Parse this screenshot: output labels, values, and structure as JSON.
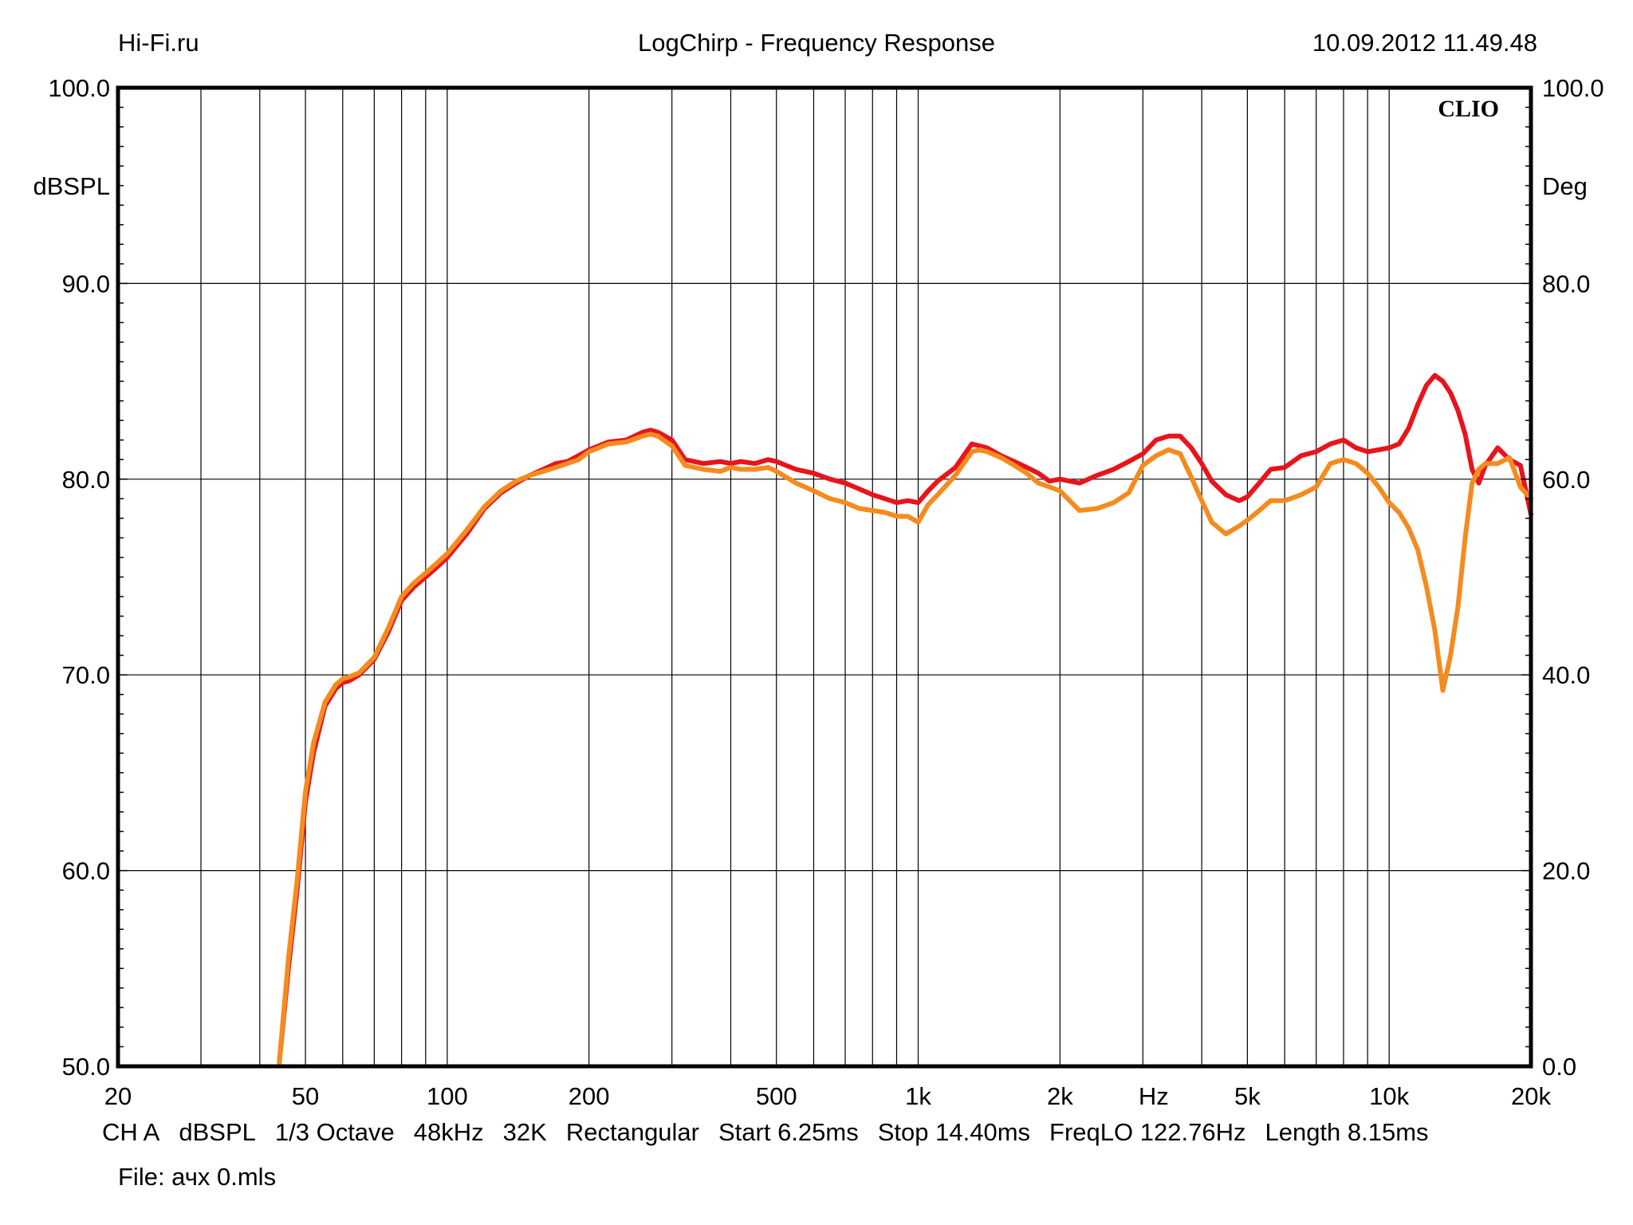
{
  "header": {
    "left": "Hi-Fi.ru",
    "title": "LogChirp - Frequency Response",
    "timestamp": "10.09.2012 11.49.48"
  },
  "footer": {
    "items": [
      "CH A",
      "dBSPL",
      "1/3 Octave",
      "48kHz",
      "32K",
      "Rectangular",
      "Start 6.25ms",
      "Stop 14.40ms",
      "FreqLO 122.76Hz",
      "Length 8.15ms"
    ],
    "file": "File: ачх 0.mls"
  },
  "chart_data": {
    "type": "line",
    "title": "LogChirp - Frequency Response",
    "watermark": "CLIO",
    "xscale": "log",
    "xlim": [
      20,
      20000
    ],
    "x_ticks": [
      {
        "value": 20,
        "label": "20"
      },
      {
        "value": 50,
        "label": "50"
      },
      {
        "value": 100,
        "label": "100"
      },
      {
        "value": 200,
        "label": "200"
      },
      {
        "value": 500,
        "label": "500"
      },
      {
        "value": 1000,
        "label": "1k"
      },
      {
        "value": 2000,
        "label": "2k"
      },
      {
        "value": 5000,
        "label": "5k"
      },
      {
        "value": 10000,
        "label": "10k"
      },
      {
        "value": 20000,
        "label": "20k"
      }
    ],
    "xlabel": "Hz",
    "ylabel_left": "dBSPL",
    "ylim_left": [
      50,
      100
    ],
    "y_ticks_left": [
      "50.0",
      "60.0",
      "70.0",
      "80.0",
      "90.0",
      "100.0"
    ],
    "ylabel_right": "Deg",
    "ylim_right": [
      0,
      100
    ],
    "y_ticks_right": [
      "0.0",
      "20.0",
      "40.0",
      "60.0",
      "80.0",
      "100.0"
    ],
    "grid": true,
    "series": [
      {
        "color": "#e8141c",
        "x": [
          44,
          46,
          48,
          50,
          52,
          55,
          58,
          60,
          62,
          65,
          70,
          75,
          80,
          85,
          90,
          95,
          100,
          110,
          120,
          130,
          140,
          150,
          160,
          170,
          180,
          190,
          200,
          220,
          240,
          260,
          270,
          280,
          300,
          320,
          350,
          380,
          400,
          420,
          450,
          480,
          500,
          550,
          600,
          650,
          700,
          750,
          800,
          850,
          900,
          950,
          1000,
          1050,
          1100,
          1200,
          1300,
          1350,
          1400,
          1500,
          1600,
          1700,
          1800,
          1900,
          2000,
          2200,
          2400,
          2600,
          2800,
          3000,
          3200,
          3400,
          3600,
          3800,
          4000,
          4200,
          4500,
          4800,
          5000,
          5300,
          5600,
          6000,
          6500,
          7000,
          7500,
          8000,
          8500,
          9000,
          9500,
          10000,
          10500,
          11000,
          11500,
          12000,
          12500,
          13000,
          13500,
          14000,
          14500,
          15000,
          15500,
          16000,
          17000,
          18000,
          19000,
          20000
        ],
        "values": [
          50.2,
          55,
          59,
          63.5,
          66,
          68.4,
          69.3,
          69.6,
          69.7,
          70,
          70.8,
          72.2,
          73.8,
          74.5,
          75,
          75.5,
          76,
          77.2,
          78.5,
          79.3,
          79.8,
          80.2,
          80.5,
          80.8,
          80.9,
          81.2,
          81.5,
          81.9,
          82,
          82.4,
          82.5,
          82.4,
          82,
          81,
          80.8,
          80.9,
          80.8,
          80.9,
          80.8,
          81,
          80.9,
          80.5,
          80.3,
          80,
          79.8,
          79.5,
          79.2,
          79,
          78.8,
          78.9,
          78.8,
          79.4,
          79.9,
          80.6,
          81.8,
          81.7,
          81.6,
          81.2,
          80.9,
          80.6,
          80.3,
          79.9,
          80,
          79.8,
          80.2,
          80.5,
          80.9,
          81.3,
          82,
          82.2,
          82.2,
          81.6,
          80.8,
          79.9,
          79.2,
          78.9,
          79.1,
          79.8,
          80.5,
          80.6,
          81.2,
          81.4,
          81.8,
          82,
          81.6,
          81.4,
          81.5,
          81.6,
          81.8,
          82.6,
          83.8,
          84.8,
          85.3,
          85,
          84.4,
          83.5,
          82.3,
          80.5,
          79.8,
          80.7,
          81.6,
          81,
          80.7,
          78.2
        ]
      },
      {
        "color": "#f58b1f",
        "x": [
          44,
          46,
          48,
          50,
          52,
          55,
          58,
          60,
          62,
          65,
          70,
          75,
          80,
          85,
          90,
          95,
          100,
          110,
          120,
          130,
          140,
          150,
          160,
          170,
          180,
          190,
          200,
          220,
          240,
          260,
          270,
          280,
          300,
          320,
          350,
          380,
          400,
          420,
          450,
          480,
          500,
          550,
          600,
          650,
          700,
          750,
          800,
          850,
          900,
          950,
          1000,
          1050,
          1100,
          1200,
          1300,
          1350,
          1400,
          1500,
          1600,
          1700,
          1800,
          1900,
          2000,
          2200,
          2400,
          2600,
          2800,
          3000,
          3200,
          3400,
          3600,
          3800,
          4000,
          4200,
          4500,
          4800,
          5000,
          5300,
          5600,
          6000,
          6500,
          7000,
          7500,
          8000,
          8500,
          9000,
          9500,
          10000,
          10500,
          11000,
          11500,
          12000,
          12500,
          13000,
          13500,
          14000,
          14500,
          15000,
          15500,
          16000,
          17000,
          18000,
          19000,
          20000
        ],
        "values": [
          50.2,
          55.5,
          59.5,
          64,
          66.5,
          68.6,
          69.5,
          69.8,
          69.9,
          70.1,
          70.9,
          72.4,
          74,
          74.7,
          75.2,
          75.7,
          76.2,
          77.4,
          78.6,
          79.4,
          79.9,
          80.2,
          80.4,
          80.6,
          80.8,
          81,
          81.4,
          81.8,
          81.9,
          82.2,
          82.3,
          82.2,
          81.7,
          80.7,
          80.5,
          80.4,
          80.6,
          80.5,
          80.5,
          80.6,
          80.4,
          79.8,
          79.4,
          79,
          78.8,
          78.5,
          78.4,
          78.3,
          78.1,
          78.1,
          77.8,
          78.7,
          79.2,
          80.2,
          81.4,
          81.5,
          81.4,
          81.1,
          80.7,
          80.3,
          79.8,
          79.6,
          79.4,
          78.4,
          78.5,
          78.8,
          79.3,
          80.7,
          81.2,
          81.5,
          81.3,
          80.1,
          78.9,
          77.8,
          77.2,
          77.6,
          77.9,
          78.4,
          78.9,
          78.9,
          79.2,
          79.6,
          80.8,
          81,
          80.8,
          80.3,
          79.6,
          78.8,
          78.3,
          77.5,
          76.4,
          74.5,
          72.3,
          69.2,
          71,
          73.5,
          77,
          79.8,
          80.5,
          80.8,
          80.8,
          81.1,
          79.6,
          79
        ]
      }
    ]
  }
}
